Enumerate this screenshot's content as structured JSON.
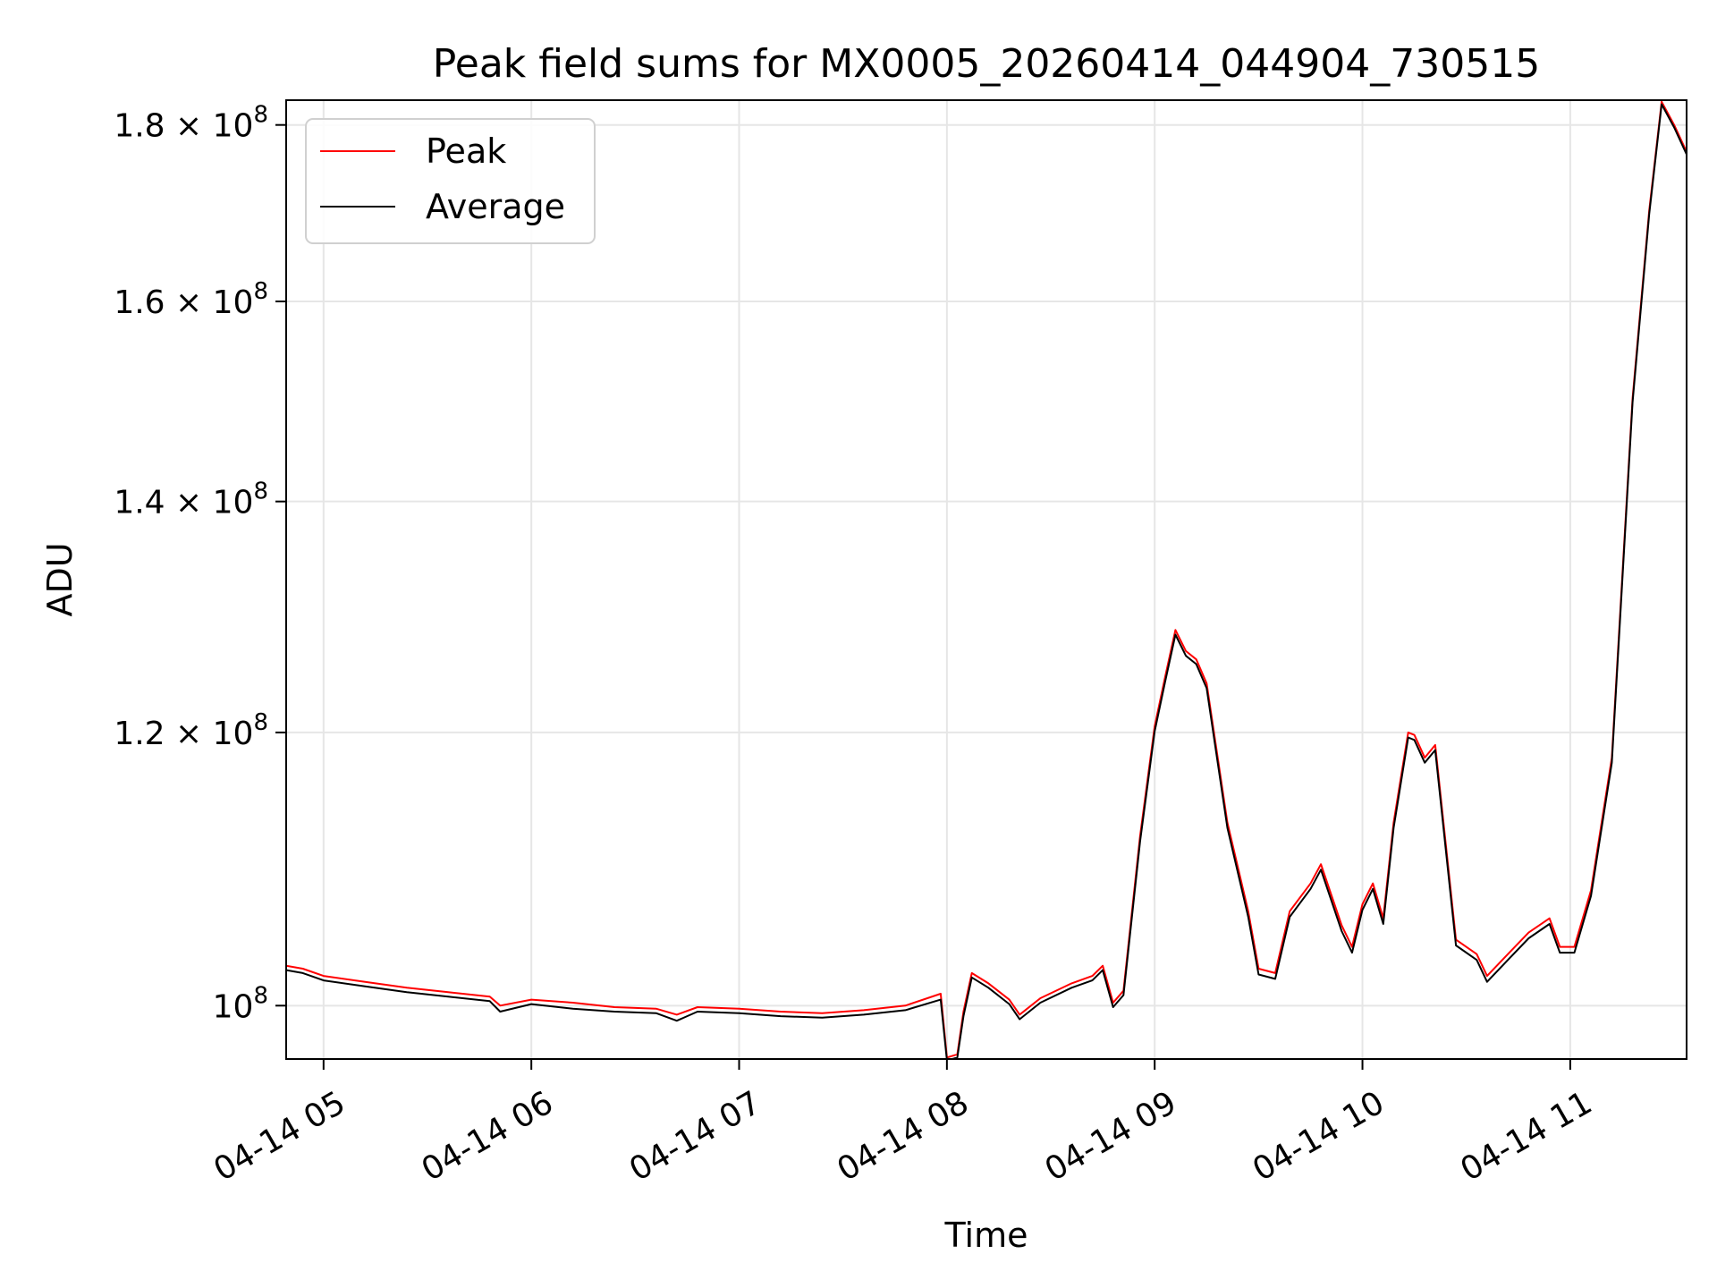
{
  "chart_data": {
    "type": "line",
    "title": "Peak field sums for MX0005_20260414_044904_730515",
    "xlabel": "Time",
    "ylabel": "ADU",
    "x_unit": "hours since 04-14 00:00",
    "xlim": [
      4.82,
      11.56
    ],
    "ylim": [
      96500000,
      183000000
    ],
    "y_scale": "log",
    "grid": true,
    "legend_position": "top-left",
    "x_ticks": [
      {
        "value": 5,
        "label": "04-14 05"
      },
      {
        "value": 6,
        "label": "04-14 06"
      },
      {
        "value": 7,
        "label": "04-14 07"
      },
      {
        "value": 8,
        "label": "04-14 08"
      },
      {
        "value": 9,
        "label": "04-14 09"
      },
      {
        "value": 10,
        "label": "04-14 10"
      },
      {
        "value": 11,
        "label": "04-14 11"
      }
    ],
    "y_ticks": [
      {
        "value": 100000000,
        "mantissa": "10",
        "exponent": "8"
      },
      {
        "value": 120000000,
        "mantissa": "1.2 × 10",
        "exponent": "8"
      },
      {
        "value": 140000000,
        "mantissa": "1.4 × 10",
        "exponent": "8"
      },
      {
        "value": 160000000,
        "mantissa": "1.6 × 10",
        "exponent": "8"
      },
      {
        "value": 180000000,
        "mantissa": "1.8 × 10",
        "exponent": "8"
      }
    ],
    "series": [
      {
        "name": "Peak",
        "color": "#ff0000",
        "points": [
          [
            4.82,
            102700000
          ],
          [
            4.9,
            102500000
          ],
          [
            5.0,
            102000000
          ],
          [
            5.2,
            101600000
          ],
          [
            5.4,
            101200000
          ],
          [
            5.6,
            100900000
          ],
          [
            5.8,
            100600000
          ],
          [
            5.85,
            100000000
          ],
          [
            6.0,
            100400000
          ],
          [
            6.2,
            100200000
          ],
          [
            6.4,
            99900000
          ],
          [
            6.6,
            99800000
          ],
          [
            6.7,
            99400000
          ],
          [
            6.8,
            99900000
          ],
          [
            7.0,
            99800000
          ],
          [
            7.2,
            99600000
          ],
          [
            7.4,
            99500000
          ],
          [
            7.6,
            99700000
          ],
          [
            7.8,
            100000000
          ],
          [
            7.97,
            100800000
          ],
          [
            8.0,
            96600000
          ],
          [
            8.05,
            96800000
          ],
          [
            8.08,
            99600000
          ],
          [
            8.12,
            102200000
          ],
          [
            8.2,
            101500000
          ],
          [
            8.3,
            100400000
          ],
          [
            8.35,
            99400000
          ],
          [
            8.45,
            100500000
          ],
          [
            8.6,
            101500000
          ],
          [
            8.7,
            102000000
          ],
          [
            8.75,
            102700000
          ],
          [
            8.8,
            100200000
          ],
          [
            8.85,
            101000000
          ],
          [
            8.93,
            112000000
          ],
          [
            9.0,
            120500000
          ],
          [
            9.05,
            124500000
          ],
          [
            9.1,
            128500000
          ],
          [
            9.15,
            126700000
          ],
          [
            9.2,
            126000000
          ],
          [
            9.25,
            124000000
          ],
          [
            9.35,
            113000000
          ],
          [
            9.45,
            106500000
          ],
          [
            9.5,
            102500000
          ],
          [
            9.58,
            102200000
          ],
          [
            9.65,
            106500000
          ],
          [
            9.75,
            108500000
          ],
          [
            9.8,
            109900000
          ],
          [
            9.9,
            105500000
          ],
          [
            9.95,
            104000000
          ],
          [
            10.0,
            107000000
          ],
          [
            10.05,
            108500000
          ],
          [
            10.1,
            106000000
          ],
          [
            10.15,
            113000000
          ],
          [
            10.22,
            120000000
          ],
          [
            10.25,
            119800000
          ],
          [
            10.3,
            118000000
          ],
          [
            10.35,
            119000000
          ],
          [
            10.45,
            104500000
          ],
          [
            10.55,
            103500000
          ],
          [
            10.6,
            102000000
          ],
          [
            10.7,
            103500000
          ],
          [
            10.8,
            105000000
          ],
          [
            10.9,
            106000000
          ],
          [
            10.95,
            104000000
          ],
          [
            11.02,
            104000000
          ],
          [
            11.1,
            108000000
          ],
          [
            11.2,
            118000000
          ],
          [
            11.3,
            150000000
          ],
          [
            11.38,
            170000000
          ],
          [
            11.44,
            182800000
          ],
          [
            11.5,
            180000000
          ],
          [
            11.56,
            176800000
          ]
        ]
      },
      {
        "name": "Average",
        "color": "#000000",
        "points": [
          [
            4.82,
            102400000
          ],
          [
            4.9,
            102200000
          ],
          [
            5.0,
            101700000
          ],
          [
            5.2,
            101300000
          ],
          [
            5.4,
            100900000
          ],
          [
            5.6,
            100600000
          ],
          [
            5.8,
            100300000
          ],
          [
            5.85,
            99600000
          ],
          [
            6.0,
            100100000
          ],
          [
            6.2,
            99800000
          ],
          [
            6.4,
            99600000
          ],
          [
            6.6,
            99500000
          ],
          [
            6.7,
            99000000
          ],
          [
            6.8,
            99600000
          ],
          [
            7.0,
            99500000
          ],
          [
            7.2,
            99300000
          ],
          [
            7.4,
            99200000
          ],
          [
            7.6,
            99400000
          ],
          [
            7.8,
            99700000
          ],
          [
            7.97,
            100400000
          ],
          [
            8.0,
            96400000
          ],
          [
            8.05,
            96600000
          ],
          [
            8.08,
            99300000
          ],
          [
            8.12,
            101900000
          ],
          [
            8.2,
            101200000
          ],
          [
            8.3,
            100100000
          ],
          [
            8.35,
            99100000
          ],
          [
            8.45,
            100200000
          ],
          [
            8.6,
            101200000
          ],
          [
            8.7,
            101700000
          ],
          [
            8.75,
            102400000
          ],
          [
            8.8,
            99900000
          ],
          [
            8.85,
            100700000
          ],
          [
            8.93,
            111600000
          ],
          [
            9.0,
            120100000
          ],
          [
            9.05,
            124100000
          ],
          [
            9.1,
            128100000
          ],
          [
            9.15,
            126300000
          ],
          [
            9.2,
            125600000
          ],
          [
            9.25,
            123600000
          ],
          [
            9.35,
            112600000
          ],
          [
            9.45,
            106100000
          ],
          [
            9.5,
            102100000
          ],
          [
            9.58,
            101800000
          ],
          [
            9.65,
            106100000
          ],
          [
            9.75,
            108100000
          ],
          [
            9.8,
            109500000
          ],
          [
            9.9,
            105100000
          ],
          [
            9.95,
            103600000
          ],
          [
            10.0,
            106600000
          ],
          [
            10.05,
            108100000
          ],
          [
            10.1,
            105600000
          ],
          [
            10.15,
            112600000
          ],
          [
            10.22,
            119600000
          ],
          [
            10.25,
            119400000
          ],
          [
            10.3,
            117600000
          ],
          [
            10.35,
            118600000
          ],
          [
            10.45,
            104100000
          ],
          [
            10.55,
            103100000
          ],
          [
            10.6,
            101600000
          ],
          [
            10.7,
            103100000
          ],
          [
            10.8,
            104600000
          ],
          [
            10.9,
            105600000
          ],
          [
            10.95,
            103600000
          ],
          [
            11.02,
            103600000
          ],
          [
            11.1,
            107600000
          ],
          [
            11.2,
            117600000
          ],
          [
            11.3,
            149600000
          ],
          [
            11.38,
            169600000
          ],
          [
            11.44,
            182500000
          ],
          [
            11.5,
            179700000
          ],
          [
            11.56,
            176500000
          ]
        ]
      }
    ]
  }
}
